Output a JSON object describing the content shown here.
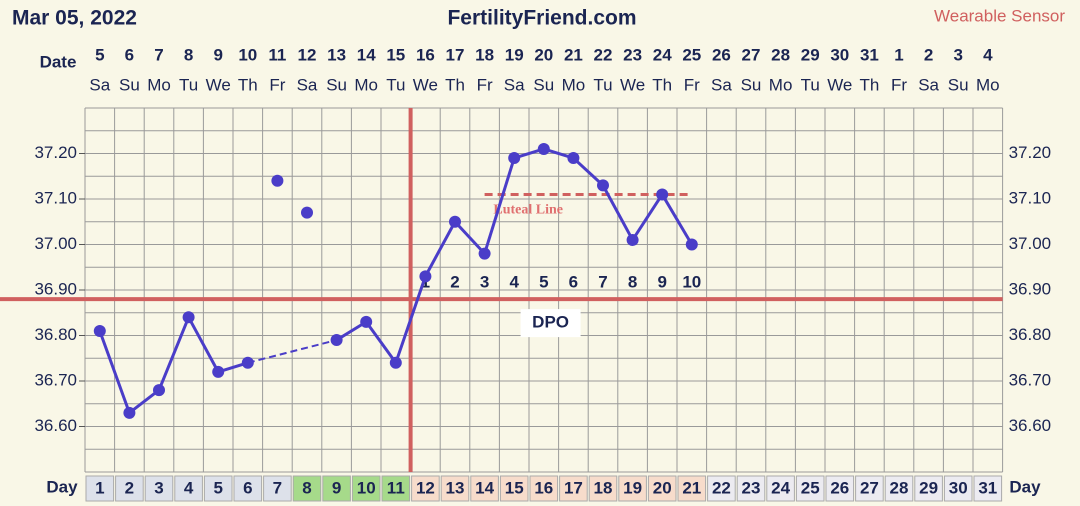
{
  "chart_data": {
    "type": "line",
    "title": "FertilityFriend.com",
    "date": "Mar 05, 2022",
    "source_label": "Wearable Sensor",
    "date_label": "Date",
    "day_label": "Day",
    "dates": [
      "5",
      "6",
      "7",
      "8",
      "9",
      "10",
      "11",
      "12",
      "13",
      "14",
      "15",
      "16",
      "17",
      "18",
      "19",
      "20",
      "21",
      "22",
      "23",
      "24",
      "25",
      "26",
      "27",
      "28",
      "29",
      "30",
      "31",
      "1",
      "2",
      "3",
      "4"
    ],
    "weekdays": [
      "Sa",
      "Su",
      "Mo",
      "Tu",
      "We",
      "Th",
      "Fr",
      "Sa",
      "Su",
      "Mo",
      "Tu",
      "We",
      "Th",
      "Fr",
      "Sa",
      "Su",
      "Mo",
      "Tu",
      "We",
      "Th",
      "Fr",
      "Sa",
      "Su",
      "Mo",
      "Tu",
      "We",
      "Th",
      "Fr",
      "Sa",
      "Su",
      "Mo"
    ],
    "x": [
      1,
      2,
      3,
      4,
      5,
      6,
      7,
      8,
      9,
      10,
      11,
      12,
      13,
      14,
      15,
      16,
      17,
      18,
      19,
      20,
      21,
      22,
      23,
      24,
      25,
      26,
      27,
      28,
      29,
      30,
      31
    ],
    "values": [
      36.81,
      36.63,
      36.68,
      36.84,
      36.72,
      36.74,
      null,
      null,
      36.79,
      36.83,
      36.74,
      36.93,
      37.05,
      36.98,
      37.19,
      37.21,
      37.19,
      37.13,
      37.01,
      37.11,
      37.0,
      null,
      null,
      null,
      null,
      null,
      null,
      null,
      null,
      null,
      null
    ],
    "excluded_values": [
      null,
      null,
      null,
      null,
      null,
      null,
      37.14,
      37.07,
      null,
      null,
      null,
      null,
      null,
      null,
      null,
      null,
      null,
      null,
      null,
      null,
      null,
      null,
      null,
      null,
      null,
      null,
      null,
      null,
      null,
      null,
      null
    ],
    "color": "#4a3dc8",
    "day_colors": [
      "#dde1ea",
      "#dde1ea",
      "#dde1ea",
      "#dde1ea",
      "#dde1ea",
      "#dde1ea",
      "#dde1ea",
      "#a6da8a",
      "#a6da8a",
      "#a6da8a",
      "#a6da8a",
      "#f7dccb",
      "#f7dccb",
      "#f7dccb",
      "#f7dccb",
      "#f7dccb",
      "#f7dccb",
      "#f7dccb",
      "#f7dccb",
      "#f7dccb",
      "#f7dccb",
      "#ecebf1",
      "#ecebf1",
      "#ecebf1",
      "#ecebf1",
      "#ecebf1",
      "#ecebf1",
      "#ecebf1",
      "#ecebf1",
      "#ecebf1",
      "#ecebf1"
    ],
    "ylim": [
      36.5,
      37.3
    ],
    "yticks": [
      {
        "value": 36.6,
        "label": "36.60"
      },
      {
        "value": 36.7,
        "label": "36.70"
      },
      {
        "value": 36.8,
        "label": "36.80"
      },
      {
        "value": 36.9,
        "label": "36.90"
      },
      {
        "value": 37.0,
        "label": "37.00"
      },
      {
        "value": 37.1,
        "label": "37.10"
      },
      {
        "value": 37.2,
        "label": "37.20"
      }
    ],
    "cover_line": 36.88,
    "ovulation_day": 11,
    "line_color": "#d0605f",
    "luteal_line": {
      "value": 37.11,
      "from": 14,
      "to": 21,
      "label": "Luteal Line"
    },
    "dpo": {
      "label": "DPO",
      "values": [
        1,
        2,
        3,
        4,
        5,
        6,
        7,
        8,
        9,
        10
      ]
    }
  }
}
